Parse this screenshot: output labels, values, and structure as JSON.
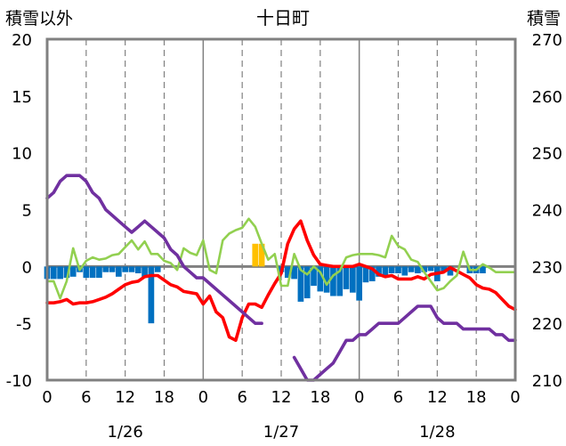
{
  "chart_data": {
    "type": "line",
    "title": "十日町",
    "left_axis_title": "積雪以外",
    "right_axis_title": "積雪",
    "y_left": {
      "min": -10,
      "max": 20,
      "ticks": [
        "-10",
        "-5",
        "0",
        "5",
        "10",
        "15",
        "20"
      ]
    },
    "y_right": {
      "min": 210,
      "max": 270,
      "ticks": [
        "210",
        "220",
        "230",
        "240",
        "250",
        "260",
        "270"
      ]
    },
    "x": {
      "min": 0,
      "max": 72,
      "tick_values": [
        0,
        6,
        12,
        18,
        24,
        30,
        36,
        42,
        48,
        54,
        60,
        66,
        72
      ],
      "tick_labels": [
        "0",
        "6",
        "12",
        "18",
        "0",
        "6",
        "12",
        "18",
        "0",
        "6",
        "12",
        "18",
        "0"
      ]
    },
    "dates": [
      {
        "label": "1/26",
        "at": 12
      },
      {
        "label": "1/27",
        "at": 36
      },
      {
        "label": "1/28",
        "at": 60
      }
    ],
    "colors": {
      "red": "#ff0000",
      "purple": "#7030a0",
      "green": "#92d050",
      "blue_bars": "#0070c0",
      "orange_bars": "#ffc000",
      "frame": "#808080",
      "grid": "#808080"
    },
    "series": [
      {
        "color": "#ff0000",
        "axis": "left",
        "points": [
          [
            0,
            -3.2
          ],
          [
            1,
            -3.2
          ],
          [
            2,
            -3.1
          ],
          [
            3,
            -2.9
          ],
          [
            4,
            -3.3
          ],
          [
            5,
            -3.2
          ],
          [
            6,
            -3.2
          ],
          [
            7,
            -3.1
          ],
          [
            8,
            -2.9
          ],
          [
            9,
            -2.7
          ],
          [
            10,
            -2.4
          ],
          [
            11,
            -2.0
          ],
          [
            12,
            -1.6
          ],
          [
            13,
            -1.4
          ],
          [
            14,
            -1.3
          ],
          [
            15,
            -0.9
          ],
          [
            16,
            -0.8
          ],
          [
            17,
            -0.8
          ],
          [
            18,
            -1.2
          ],
          [
            19,
            -1.6
          ],
          [
            20,
            -1.8
          ],
          [
            21,
            -2.2
          ],
          [
            22,
            -2.3
          ],
          [
            23,
            -2.4
          ],
          [
            24,
            -3.3
          ],
          [
            25,
            -2.6
          ],
          [
            26,
            -4.0
          ],
          [
            27,
            -4.5
          ],
          [
            28,
            -6.2
          ],
          [
            29,
            -6.5
          ],
          [
            30,
            -4.5
          ],
          [
            31,
            -3.3
          ],
          [
            32,
            -3.3
          ],
          [
            33,
            -3.6
          ],
          [
            34,
            -2.5
          ],
          [
            35,
            -1.5
          ],
          [
            36,
            -0.6
          ],
          [
            37,
            2.0
          ],
          [
            38,
            3.3
          ],
          [
            39,
            4.0
          ],
          [
            40,
            2.3
          ],
          [
            41,
            1.0
          ],
          [
            42,
            0.2
          ],
          [
            43,
            0.1
          ],
          [
            44,
            0.0
          ],
          [
            45,
            0.0
          ],
          [
            46,
            0.0
          ],
          [
            47,
            0.0
          ],
          [
            48,
            0.2
          ],
          [
            49,
            0.0
          ],
          [
            50,
            -0.2
          ],
          [
            51,
            -0.7
          ],
          [
            52,
            -0.9
          ],
          [
            53,
            -0.8
          ],
          [
            54,
            -1.1
          ],
          [
            55,
            -1.1
          ],
          [
            56,
            -1.1
          ],
          [
            57,
            -0.9
          ],
          [
            58,
            -1.1
          ],
          [
            59,
            -0.7
          ],
          [
            60,
            -0.6
          ],
          [
            61,
            -0.5
          ],
          [
            62,
            -0.1
          ],
          [
            63,
            -0.4
          ],
          [
            64,
            -0.7
          ],
          [
            65,
            -1.0
          ],
          [
            66,
            -1.6
          ],
          [
            67,
            -1.9
          ],
          [
            68,
            -2.0
          ],
          [
            69,
            -2.3
          ],
          [
            70,
            -2.9
          ],
          [
            71,
            -3.5
          ],
          [
            72,
            -3.8
          ]
        ]
      },
      {
        "color": "#92d050",
        "axis": "left",
        "points": [
          [
            0,
            -1.3
          ],
          [
            1,
            -1.3
          ],
          [
            2,
            -2.8
          ],
          [
            3,
            -1.3
          ],
          [
            4,
            1.6
          ],
          [
            5,
            -0.3
          ],
          [
            6,
            0.5
          ],
          [
            7,
            0.8
          ],
          [
            8,
            0.6
          ],
          [
            9,
            0.7
          ],
          [
            10,
            1.0
          ],
          [
            11,
            1.1
          ],
          [
            12,
            1.7
          ],
          [
            13,
            2.3
          ],
          [
            14,
            1.5
          ],
          [
            15,
            2.2
          ],
          [
            16,
            1.1
          ],
          [
            17,
            1.1
          ],
          [
            18,
            0.5
          ],
          [
            19,
            0.3
          ],
          [
            20,
            -0.3
          ],
          [
            21,
            1.6
          ],
          [
            22,
            1.2
          ],
          [
            23,
            1.0
          ],
          [
            24,
            2.3
          ],
          [
            25,
            -0.3
          ],
          [
            26,
            -0.6
          ],
          [
            27,
            2.3
          ],
          [
            28,
            2.9
          ],
          [
            29,
            3.2
          ],
          [
            30,
            3.4
          ],
          [
            31,
            4.2
          ],
          [
            32,
            3.5
          ],
          [
            33,
            2.0
          ],
          [
            34,
            0.6
          ],
          [
            35,
            1.1
          ],
          [
            36,
            -1.7
          ],
          [
            37,
            -1.7
          ],
          [
            38,
            1.1
          ],
          [
            39,
            -0.3
          ],
          [
            40,
            -0.7
          ],
          [
            41,
            0.0
          ],
          [
            42,
            -0.5
          ],
          [
            43,
            -1.6
          ],
          [
            44,
            -0.8
          ],
          [
            45,
            -0.4
          ],
          [
            46,
            0.8
          ],
          [
            47,
            1.0
          ],
          [
            48,
            1.1
          ],
          [
            49,
            1.1
          ],
          [
            50,
            1.1
          ],
          [
            51,
            1.0
          ],
          [
            52,
            0.8
          ],
          [
            53,
            2.7
          ],
          [
            54,
            1.8
          ],
          [
            55,
            1.5
          ],
          [
            56,
            0.6
          ],
          [
            57,
            0.4
          ],
          [
            58,
            -0.5
          ],
          [
            59,
            -1.3
          ],
          [
            60,
            -2.1
          ],
          [
            61,
            -1.9
          ],
          [
            62,
            -1.3
          ],
          [
            63,
            -0.8
          ],
          [
            64,
            1.3
          ],
          [
            65,
            -0.3
          ],
          [
            66,
            -0.3
          ],
          [
            67,
            0.2
          ],
          [
            68,
            -0.1
          ],
          [
            69,
            -0.5
          ],
          [
            70,
            -0.5
          ],
          [
            71,
            -0.5
          ],
          [
            72,
            -0.5
          ]
        ]
      },
      {
        "color": "#7030a0",
        "axis": "right",
        "points": [
          [
            0,
            242
          ],
          [
            1,
            243
          ],
          [
            2,
            245
          ],
          [
            3,
            246
          ],
          [
            4,
            246
          ],
          [
            5,
            246
          ],
          [
            6,
            245
          ],
          [
            7,
            243
          ],
          [
            8,
            242
          ],
          [
            9,
            240
          ],
          [
            10,
            239
          ],
          [
            11,
            238
          ],
          [
            12,
            237
          ],
          [
            13,
            236
          ],
          [
            14,
            237
          ],
          [
            15,
            238
          ],
          [
            16,
            237
          ],
          [
            17,
            236
          ],
          [
            18,
            235
          ],
          [
            19,
            233
          ],
          [
            20,
            232
          ],
          [
            21,
            230
          ],
          [
            22,
            229
          ],
          [
            23,
            228
          ],
          [
            24,
            228
          ],
          [
            25,
            227
          ],
          [
            26,
            226
          ],
          [
            27,
            225
          ],
          [
            28,
            224
          ],
          [
            29,
            223
          ],
          [
            30,
            222
          ],
          [
            31,
            221
          ],
          [
            32,
            220
          ],
          [
            33,
            220
          ],
          [
            34,
            null
          ],
          [
            35,
            null
          ],
          [
            36,
            null
          ],
          [
            37,
            null
          ],
          [
            38,
            214
          ],
          [
            39,
            212
          ],
          [
            40,
            210
          ],
          [
            41,
            210
          ],
          [
            42,
            211
          ],
          [
            43,
            212
          ],
          [
            44,
            213
          ],
          [
            45,
            215
          ],
          [
            46,
            217
          ],
          [
            47,
            217
          ],
          [
            48,
            218
          ],
          [
            49,
            218
          ],
          [
            50,
            219
          ],
          [
            51,
            220
          ],
          [
            52,
            220
          ],
          [
            53,
            220
          ],
          [
            54,
            220
          ],
          [
            55,
            221
          ],
          [
            56,
            222
          ],
          [
            57,
            223
          ],
          [
            58,
            223
          ],
          [
            59,
            223
          ],
          [
            60,
            221
          ],
          [
            61,
            220
          ],
          [
            62,
            220
          ],
          [
            63,
            220
          ],
          [
            64,
            219
          ],
          [
            65,
            219
          ],
          [
            66,
            219
          ],
          [
            67,
            219
          ],
          [
            68,
            219
          ],
          [
            69,
            218
          ],
          [
            70,
            218
          ],
          [
            71,
            217
          ],
          [
            72,
            217
          ]
        ]
      },
      {
        "color": "#0070c0",
        "axis": "left",
        "type": "bar",
        "points": [
          [
            0,
            -1.1
          ],
          [
            1,
            -1.1
          ],
          [
            2,
            -1.1
          ],
          [
            3,
            -1.0
          ],
          [
            4,
            -0.9
          ],
          [
            5,
            -0.5
          ],
          [
            6,
            -1.0
          ],
          [
            7,
            -1.0
          ],
          [
            8,
            -1.0
          ],
          [
            9,
            -0.5
          ],
          [
            10,
            -0.5
          ],
          [
            11,
            -0.9
          ],
          [
            12,
            -0.5
          ],
          [
            13,
            -0.5
          ],
          [
            14,
            -0.6
          ],
          [
            15,
            -1.0
          ],
          [
            16,
            -5.0
          ],
          [
            17,
            -0.5
          ],
          [
            36,
            -0.5
          ],
          [
            37,
            -1.0
          ],
          [
            38,
            -1.1
          ],
          [
            39,
            -3.1
          ],
          [
            40,
            -2.8
          ],
          [
            41,
            -1.7
          ],
          [
            42,
            -2.2
          ],
          [
            43,
            -2.3
          ],
          [
            44,
            -2.6
          ],
          [
            45,
            -2.6
          ],
          [
            46,
            -2.0
          ],
          [
            47,
            -2.3
          ],
          [
            48,
            -3.0
          ],
          [
            49,
            -1.4
          ],
          [
            50,
            -1.3
          ],
          [
            51,
            -0.9
          ],
          [
            52,
            -0.8
          ],
          [
            53,
            -0.6
          ],
          [
            54,
            -0.6
          ],
          [
            55,
            -0.8
          ],
          [
            56,
            -0.5
          ],
          [
            57,
            -0.6
          ],
          [
            58,
            -0.5
          ],
          [
            59,
            -0.4
          ],
          [
            60,
            -1.3
          ],
          [
            61,
            -0.4
          ],
          [
            62,
            -0.8
          ],
          [
            65,
            -0.6
          ],
          [
            66,
            -0.6
          ],
          [
            67,
            -0.6
          ]
        ]
      },
      {
        "color": "#ffc000",
        "axis": "left",
        "type": "bar",
        "points": [
          [
            32,
            2.0
          ],
          [
            33,
            2.0
          ]
        ]
      }
    ]
  }
}
